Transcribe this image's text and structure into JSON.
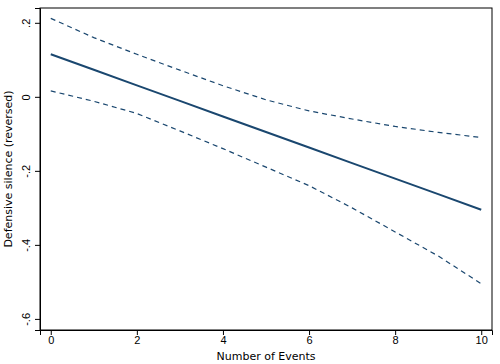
{
  "chart_data": {
    "type": "line",
    "x_label": "Number of Events",
    "y_label": "Defensive silence (reversed)",
    "x": [
      0,
      1,
      2,
      3,
      4,
      5,
      6,
      7,
      8,
      9,
      10
    ],
    "series": [
      {
        "color": "#1a476f",
        "line_style": "solid",
        "values": [
          0.115,
          0.073,
          0.031,
          -0.011,
          -0.053,
          -0.095,
          -0.137,
          -0.179,
          -0.221,
          -0.263,
          -0.305
        ]
      },
      {
        "color": "#1a476f",
        "line_style": "dashed",
        "values": [
          0.212,
          0.16,
          0.115,
          0.072,
          0.03,
          -0.008,
          -0.038,
          -0.06,
          -0.08,
          -0.096,
          -0.11
        ]
      },
      {
        "color": "#1a476f",
        "line_style": "dashed",
        "values": [
          0.016,
          -0.012,
          -0.045,
          -0.092,
          -0.14,
          -0.19,
          -0.24,
          -0.3,
          -0.365,
          -0.43,
          -0.505
        ]
      }
    ],
    "xlim": [
      -0.25,
      10.25
    ],
    "ylim": [
      -0.63,
      0.24
    ],
    "xticks": [
      0,
      2,
      4,
      6,
      8,
      10
    ],
    "yticks": [
      {
        "value": 0.2,
        "label": ".2"
      },
      0,
      {
        "value": -0.2,
        "label": "-.2"
      },
      {
        "value": -0.4,
        "label": "-.4"
      },
      {
        "value": -0.6,
        "label": "-.6"
      }
    ],
    "grid": false
  }
}
